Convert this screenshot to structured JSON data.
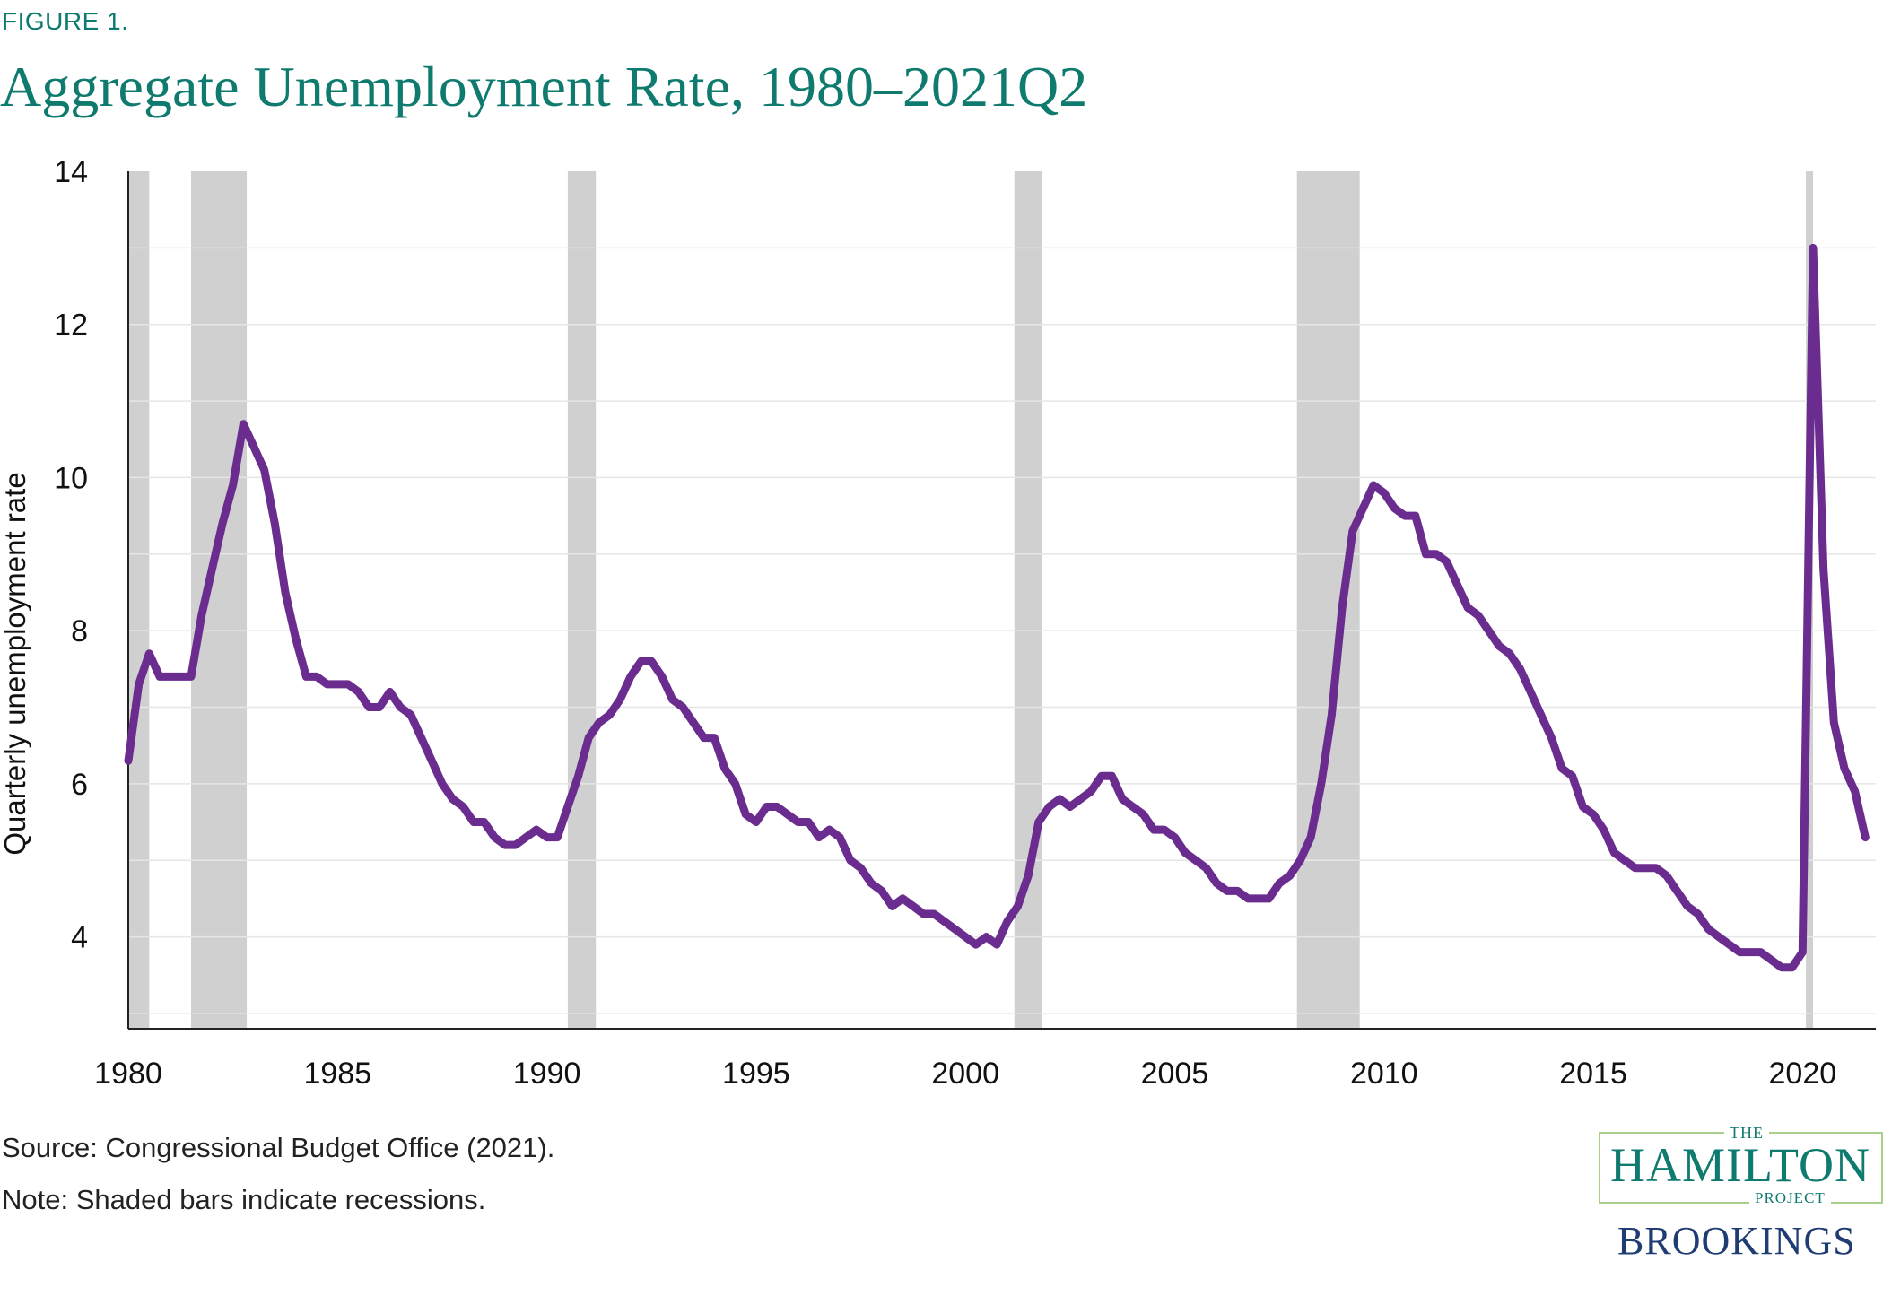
{
  "figure_label": "FIGURE 1.",
  "title": "Aggregate Unemployment Rate, 1980–2021Q2",
  "source": "Source: Congressional Budget Office (2021).",
  "note": "Note: Shaded bars indicate recessions.",
  "logo": {
    "the": "THE",
    "hamilton": "HAMILTON",
    "project": "PROJECT",
    "brookings": "BROOKINGS"
  },
  "colors": {
    "title": "#0f7a6e",
    "line": "#6b2c8f",
    "recession": "#d0d0d0",
    "grid": "#e6e6e6",
    "logo_border": "#a9cf8a",
    "brookings": "#1f3c73"
  },
  "chart_data": {
    "type": "line",
    "title": "Aggregate Unemployment Rate, 1980–2021Q2",
    "xlabel": "",
    "ylabel": "Quarterly unemployment rate",
    "xlim": [
      1980.0,
      2021.75
    ],
    "ylim": [
      2.8,
      14
    ],
    "yticks": [
      4,
      6,
      8,
      10,
      12,
      14
    ],
    "xticks": [
      1980,
      1985,
      1990,
      1995,
      2000,
      2005,
      2010,
      2015,
      2020
    ],
    "grid": true,
    "recessions": [
      [
        1980.0,
        1980.5
      ],
      [
        1981.5,
        1982.83
      ],
      [
        1990.5,
        1991.17
      ],
      [
        2001.17,
        2001.83
      ],
      [
        2007.92,
        2009.42
      ],
      [
        2020.08,
        2020.25
      ]
    ],
    "series": [
      {
        "name": "Quarterly unemployment rate",
        "start": 1980.0,
        "step": 0.25,
        "values": [
          6.3,
          7.3,
          7.7,
          7.4,
          7.4,
          7.4,
          7.4,
          8.2,
          8.8,
          9.4,
          9.9,
          10.7,
          10.4,
          10.1,
          9.4,
          8.5,
          7.9,
          7.4,
          7.4,
          7.3,
          7.3,
          7.3,
          7.2,
          7.0,
          7.0,
          7.2,
          7.0,
          6.9,
          6.6,
          6.3,
          6.0,
          5.8,
          5.7,
          5.5,
          5.5,
          5.3,
          5.2,
          5.2,
          5.3,
          5.4,
          5.3,
          5.3,
          5.7,
          6.1,
          6.6,
          6.8,
          6.9,
          7.1,
          7.4,
          7.6,
          7.6,
          7.4,
          7.1,
          7.0,
          6.8,
          6.6,
          6.6,
          6.2,
          6.0,
          5.6,
          5.5,
          5.7,
          5.7,
          5.6,
          5.5,
          5.5,
          5.3,
          5.4,
          5.3,
          5.0,
          4.9,
          4.7,
          4.6,
          4.4,
          4.5,
          4.4,
          4.3,
          4.3,
          4.2,
          4.1,
          4.0,
          3.9,
          4.0,
          3.9,
          4.2,
          4.4,
          4.8,
          5.5,
          5.7,
          5.8,
          5.7,
          5.8,
          5.9,
          6.1,
          6.1,
          5.8,
          5.7,
          5.6,
          5.4,
          5.4,
          5.3,
          5.1,
          5.0,
          4.9,
          4.7,
          4.6,
          4.6,
          4.5,
          4.5,
          4.5,
          4.7,
          4.8,
          5.0,
          5.3,
          6.0,
          6.9,
          8.3,
          9.3,
          9.6,
          9.9,
          9.8,
          9.6,
          9.5,
          9.5,
          9.0,
          9.0,
          8.9,
          8.6,
          8.3,
          8.2,
          8.0,
          7.8,
          7.7,
          7.5,
          7.2,
          6.9,
          6.6,
          6.2,
          6.1,
          5.7,
          5.6,
          5.4,
          5.1,
          5.0,
          4.9,
          4.9,
          4.9,
          4.8,
          4.6,
          4.4,
          4.3,
          4.1,
          4.0,
          3.9,
          3.8,
          3.8,
          3.8,
          3.7,
          3.6,
          3.6,
          3.8,
          13.0,
          8.8,
          6.8,
          6.2,
          5.9,
          5.3
        ]
      }
    ]
  }
}
